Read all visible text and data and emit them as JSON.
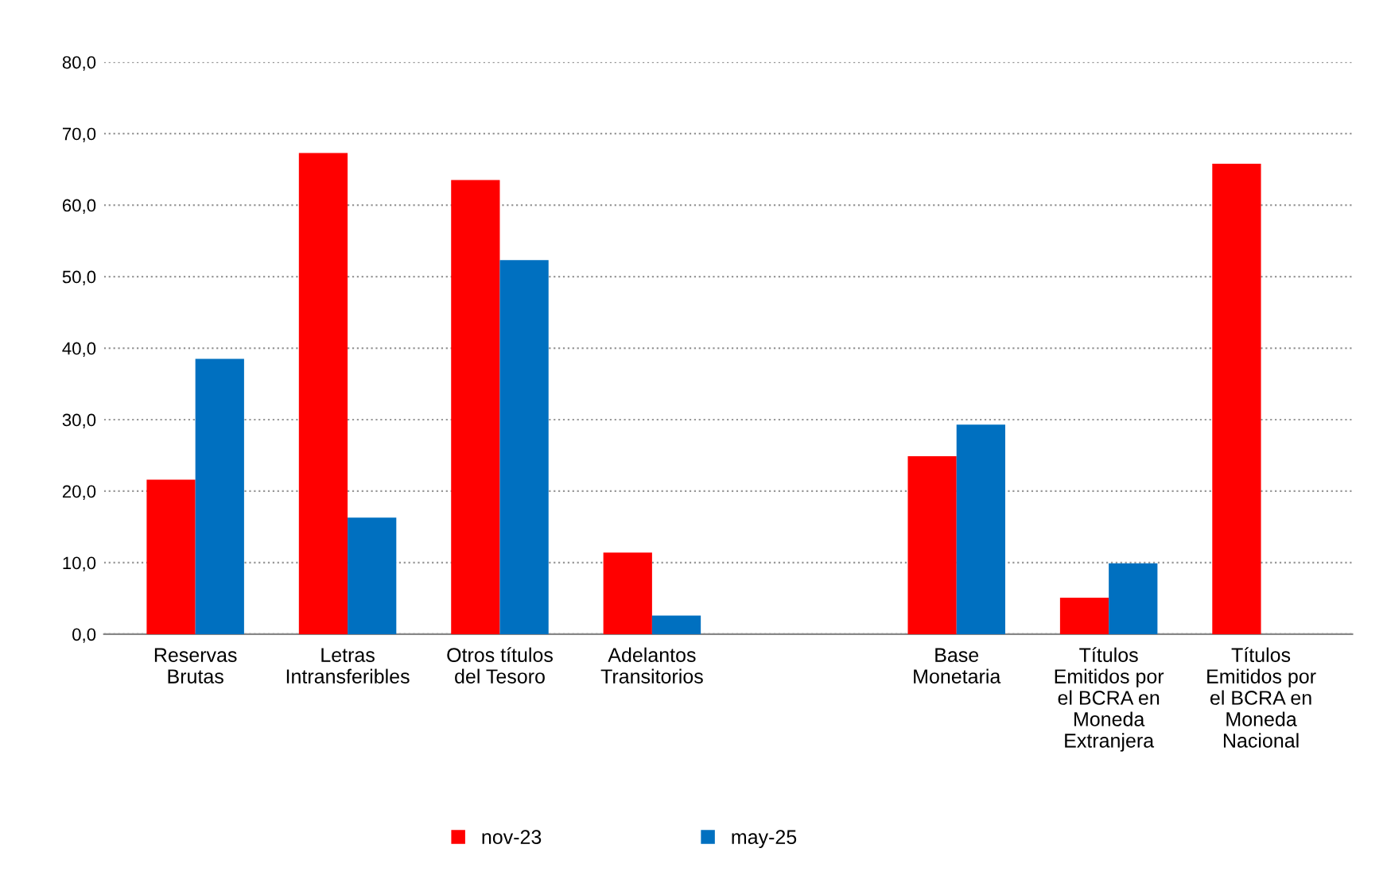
{
  "chart_data": {
    "type": "bar",
    "categories": [
      "Reservas\nBrutas",
      "Letras\nIntransferibles",
      "Otros títulos\ndel Tesoro",
      "Adelantos\nTransitorios",
      null,
      "Base\nMonetaria",
      "Títulos\nEmitidos por\nel BCRA en\nMoneda\nExtranjera",
      "Títulos\nEmitidos por\nel BCRA en\nMoneda\nNacional"
    ],
    "series": [
      {
        "name": "nov-23",
        "color": "#ff0000",
        "values": [
          21.6,
          67.3,
          63.5,
          11.4,
          null,
          24.9,
          5.1,
          65.8
        ]
      },
      {
        "name": "may-25",
        "color": "#0070c0",
        "values": [
          38.5,
          16.3,
          52.3,
          2.6,
          null,
          29.3,
          9.9,
          null
        ]
      }
    ],
    "ylim": [
      0,
      80
    ],
    "yticks": [
      {
        "value": 0,
        "label": "0,0"
      },
      {
        "value": 10,
        "label": "10,0"
      },
      {
        "value": 20,
        "label": "20,0"
      },
      {
        "value": 30,
        "label": "30,0"
      },
      {
        "value": 40,
        "label": "40,0"
      },
      {
        "value": 50,
        "label": "50,0"
      },
      {
        "value": 60,
        "label": "60,0"
      },
      {
        "value": 70,
        "label": "70,0"
      },
      {
        "value": 80,
        "label": "80,0"
      }
    ],
    "grid": "y",
    "legend": "bottom"
  }
}
